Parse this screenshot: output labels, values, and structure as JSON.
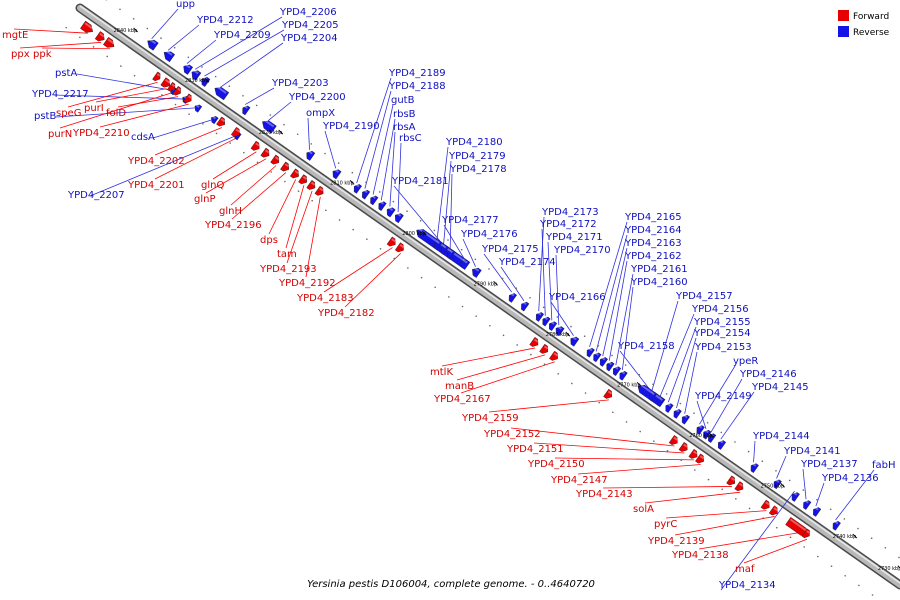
{
  "caption": "Yersinia pestis D106004, complete genome. - 0..4640720",
  "legend": {
    "forward": "Forward",
    "reverse": "Reverse"
  },
  "colors": {
    "forward": "#e80000",
    "reverse": "#1414e6",
    "forward_line": "#ff0000",
    "reverse_line": "#3030e0",
    "backbone": "#909090"
  },
  "scale_ticks": [
    "2840 kbp",
    "2830 kbp",
    "2820 kbp",
    "2810 kbp",
    "2800 kbp",
    "2790 kbp",
    "2780 kbp",
    "2770 kbp",
    "2760 kbp",
    "2750 kbp",
    "2740 kbp",
    "2730 kbp"
  ],
  "forward_genes": [
    "mgtE",
    "ppx",
    "ppk",
    "speG",
    "purI",
    "folD",
    "purN",
    "YPD4_2210",
    "YPD4_2202",
    "YPD4_2201",
    "glnQ",
    "glnP",
    "glnH",
    "YPD4_2196",
    "dps",
    "tam",
    "YPD4_2193",
    "YPD4_2192",
    "YPD4_2183",
    "YPD4_2182",
    "mtlK",
    "manB",
    "YPD4_2167",
    "YPD4_2159",
    "YPD4_2152",
    "YPD4_2151",
    "YPD4_2150",
    "YPD4_2147",
    "YPD4_2143",
    "solA",
    "pyrC",
    "YPD4_2139",
    "YPD4_2138",
    "maf"
  ],
  "reverse_genes": [
    "upp",
    "YPD4_2212",
    "YPD4_2209",
    "YPD4_2206",
    "YPD4_2205",
    "YPD4_2204",
    "pstA",
    "YPD4_2217",
    "pstB",
    "cdsA",
    "YPD4_2207",
    "YPD4_2203",
    "YPD4_2200",
    "ompX",
    "YPD4_2190",
    "YPD4_2189",
    "YPD4_2188",
    "gutB",
    "rbsB",
    "rbsA",
    "rbsC",
    "YPD4_2181",
    "YPD4_2180",
    "YPD4_2179",
    "YPD4_2178",
    "YPD4_2177",
    "YPD4_2176",
    "YPD4_2175",
    "YPD4_2174",
    "YPD4_2173",
    "YPD4_2172",
    "YPD4_2171",
    "YPD4_2170",
    "YPD4_2166",
    "YPD4_2165",
    "YPD4_2164",
    "YPD4_2163",
    "YPD4_2162",
    "YPD4_2161",
    "YPD4_2160",
    "YPD4_2158",
    "YPD4_2157",
    "YPD4_2156",
    "YPD4_2155",
    "YPD4_2154",
    "YPD4_2153",
    "ypeR",
    "YPD4_2146",
    "YPD4_2145",
    "YPD4_2149",
    "YPD4_2144",
    "YPD4_2141",
    "YPD4_2137",
    "YPD4_2136",
    "fabH",
    "YPD4_2134"
  ]
}
